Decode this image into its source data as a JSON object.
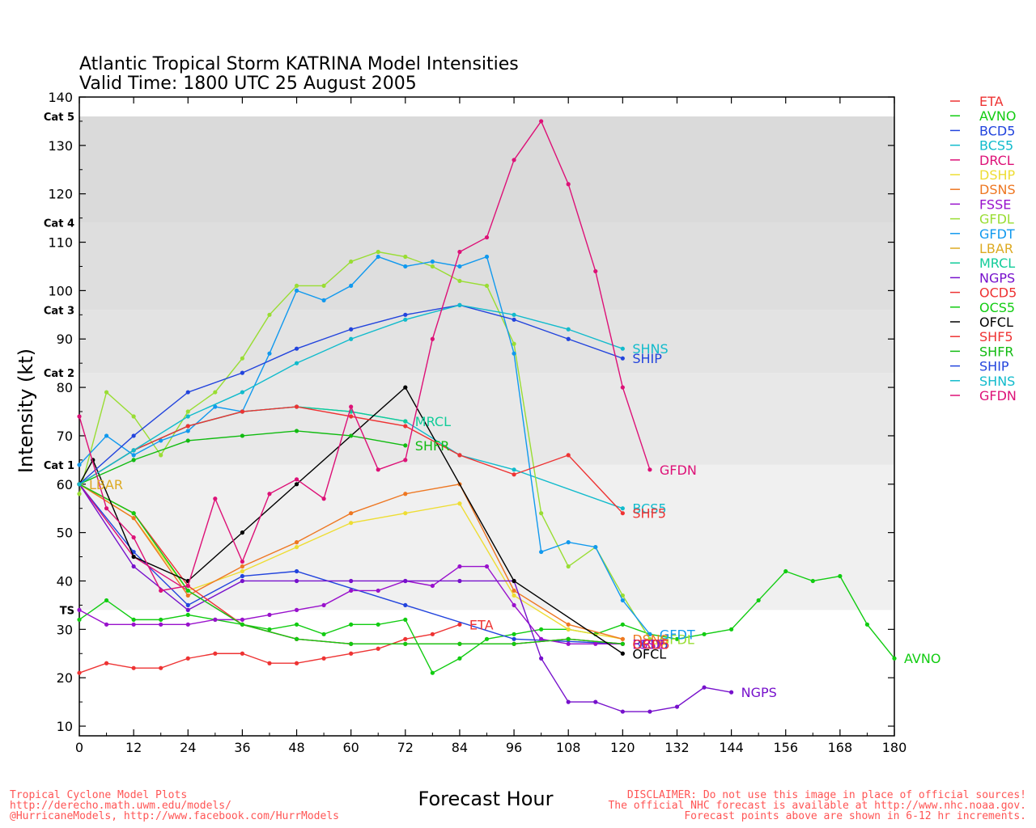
{
  "chart_data": {
    "type": "line",
    "title": "Atlantic Tropical Storm KATRINA Model Intensities",
    "subtitle": "Valid Time: 1800 UTC 25 August 2005",
    "xlabel": "Forecast Hour",
    "ylabel": "Intensity (kt)",
    "xlim": [
      0,
      180
    ],
    "ylim": [
      8,
      140
    ],
    "xticks": [
      0,
      12,
      24,
      36,
      48,
      60,
      72,
      84,
      96,
      108,
      120,
      132,
      144,
      156,
      168,
      180
    ],
    "yticks": [
      10,
      20,
      30,
      40,
      50,
      60,
      70,
      80,
      90,
      100,
      110,
      120,
      130,
      140
    ],
    "categories": [
      {
        "label": "TS",
        "from": 34,
        "to": 64,
        "color": "#f0f0f0",
        "label_y": 34
      },
      {
        "label": "Cat 1",
        "from": 64,
        "to": 83,
        "color": "#e8e8e8",
        "label_y": 64
      },
      {
        "label": "Cat 2",
        "from": 83,
        "to": 96,
        "color": "#e3e3e3",
        "label_y": 83
      },
      {
        "label": "Cat 3",
        "from": 96,
        "to": 114,
        "color": "#dedede",
        "label_y": 96
      },
      {
        "label": "Cat 4",
        "from": 114,
        "to": 136,
        "color": "#dadada",
        "label_y": 114
      },
      {
        "label": "Cat 5",
        "from": 136,
        "to": 140,
        "color": "#ffffff",
        "label_y": 136
      }
    ],
    "legend_position": "right",
    "series": [
      {
        "name": "ETA",
        "color": "#ee3333",
        "label_at_end": true,
        "x": [
          0,
          6,
          12,
          18,
          24,
          30,
          36,
          42,
          48,
          54,
          60,
          66,
          72,
          78,
          84
        ],
        "y": [
          21,
          23,
          22,
          22,
          24,
          25,
          25,
          23,
          23,
          24,
          25,
          26,
          28,
          29,
          31
        ]
      },
      {
        "name": "AVNO",
        "color": "#11cc11",
        "label_at_end": true,
        "x": [
          0,
          6,
          12,
          18,
          24,
          30,
          36,
          42,
          48,
          54,
          60,
          66,
          72,
          78,
          84,
          90,
          96,
          102,
          108,
          114,
          120,
          126,
          132,
          138,
          144,
          150,
          156,
          162,
          168,
          174,
          180
        ],
        "y": [
          32,
          36,
          32,
          32,
          33,
          32,
          31,
          30,
          31,
          29,
          31,
          31,
          32,
          21,
          24,
          28,
          29,
          30,
          30,
          29,
          31,
          29,
          28,
          29,
          30,
          36,
          42,
          40,
          41,
          31,
          24
        ]
      },
      {
        "name": "BCD5",
        "color": "#2244dd",
        "label_at_end": false,
        "x": [
          0,
          12,
          24,
          36,
          48,
          72,
          96,
          120
        ],
        "y": [
          60,
          46,
          35,
          41,
          42,
          35,
          28,
          27
        ]
      },
      {
        "name": "BCS5",
        "color": "#11bbcc",
        "label_at_end": true,
        "x": [
          0,
          12,
          24,
          36,
          48,
          60,
          72,
          84,
          96,
          120
        ],
        "y": [
          60,
          67,
          72,
          75,
          76,
          75,
          73,
          66,
          63,
          55
        ]
      },
      {
        "name": "DRCL",
        "color": "#dd1177",
        "label_at_end": false,
        "x": [
          0,
          12,
          24,
          36,
          48,
          60,
          72,
          84,
          96,
          108,
          120
        ],
        "y": [
          60,
          45,
          38,
          31,
          28,
          27,
          27,
          27,
          27,
          28,
          27
        ]
      },
      {
        "name": "DSHP",
        "color": "#eedd33",
        "label_at_end": false,
        "x": [
          0,
          12,
          24,
          36,
          48,
          60,
          72,
          84,
          96,
          108,
          120
        ],
        "y": [
          60,
          53,
          38,
          42,
          47,
          52,
          54,
          56,
          37,
          30,
          28
        ]
      },
      {
        "name": "DSNS",
        "color": "#ee7722",
        "label_at_end": false,
        "x": [
          0,
          12,
          24,
          36,
          48,
          60,
          72,
          84,
          96,
          108,
          120
        ],
        "y": [
          60,
          53,
          37,
          43,
          48,
          54,
          58,
          60,
          38,
          31,
          28
        ]
      },
      {
        "name": "FSSE",
        "color": "#9911cc",
        "label_at_end": false,
        "x": [
          0,
          6,
          12,
          18,
          24,
          30,
          36,
          42,
          48,
          54,
          60,
          66,
          72,
          78,
          84,
          90,
          96,
          102,
          108,
          114,
          120
        ],
        "y": [
          34,
          31,
          31,
          31,
          31,
          32,
          32,
          33,
          34,
          35,
          38,
          38,
          40,
          39,
          43,
          43,
          35,
          28,
          27,
          27,
          27
        ]
      },
      {
        "name": "GFDL",
        "color": "#99dd33",
        "label_at_end": true,
        "x": [
          0,
          6,
          12,
          18,
          24,
          30,
          36,
          42,
          48,
          54,
          60,
          66,
          72,
          78,
          84,
          90,
          96,
          102,
          108,
          114,
          120,
          126
        ],
        "y": [
          58,
          79,
          74,
          66,
          75,
          79,
          86,
          95,
          101,
          101,
          106,
          108,
          107,
          105,
          102,
          101,
          89,
          54,
          43,
          47,
          37,
          28
        ]
      },
      {
        "name": "GFDT",
        "color": "#1199ee",
        "label_at_end": true,
        "x": [
          0,
          6,
          12,
          18,
          24,
          30,
          36,
          42,
          48,
          54,
          60,
          66,
          72,
          78,
          84,
          90,
          96,
          102,
          108,
          114,
          120,
          126
        ],
        "y": [
          64,
          70,
          66,
          69,
          71,
          76,
          75,
          87,
          100,
          98,
          101,
          107,
          105,
          106,
          105,
          107,
          87,
          46,
          48,
          47,
          36,
          29
        ]
      },
      {
        "name": "LBAR",
        "color": "#ddaa22",
        "label_at_end": true,
        "x": [
          0
        ],
        "y": [
          60
        ]
      },
      {
        "name": "MRCL",
        "color": "#11cc99",
        "label_at_end": true,
        "x": [
          0,
          12,
          24,
          36,
          48,
          60,
          72
        ],
        "y": [
          60,
          67,
          72,
          75,
          76,
          75,
          73
        ]
      },
      {
        "name": "NGPS",
        "color": "#7711cc",
        "label_at_end": true,
        "x": [
          0,
          12,
          24,
          36,
          48,
          60,
          72,
          84,
          96,
          102,
          108,
          114,
          120,
          126,
          132,
          138,
          144
        ],
        "y": [
          60,
          43,
          34,
          40,
          40,
          40,
          40,
          40,
          40,
          24,
          15,
          15,
          13,
          13,
          14,
          18,
          17
        ]
      },
      {
        "name": "OCD5",
        "color": "#ee3333",
        "label_at_end": false,
        "x": [
          0,
          12,
          24,
          36,
          48,
          60,
          72,
          84,
          96,
          108,
          120
        ],
        "y": [
          60,
          54,
          39,
          31,
          28,
          27,
          27,
          27,
          27,
          28,
          27
        ]
      },
      {
        "name": "OCS5",
        "color": "#11cc11",
        "label_at_end": false,
        "x": [
          0,
          12,
          24,
          36,
          48,
          60,
          72,
          84,
          96,
          108,
          120
        ],
        "y": [
          60,
          54,
          38,
          31,
          28,
          27,
          27,
          27,
          27,
          28,
          27
        ]
      },
      {
        "name": "OFCL",
        "color": "#000000",
        "label_at_end": true,
        "x": [
          0,
          3,
          12,
          24,
          36,
          48,
          72,
          96,
          120
        ],
        "y": [
          60,
          65,
          45,
          40,
          50,
          60,
          80,
          40,
          25
        ]
      },
      {
        "name": "SHF5",
        "color": "#ee3333",
        "label_at_end": false,
        "x": [
          0,
          12,
          24,
          36,
          48,
          60,
          72,
          84,
          96,
          108,
          120
        ],
        "y": [
          60,
          67,
          72,
          75,
          76,
          74,
          72,
          66,
          62,
          66,
          54
        ]
      },
      {
        "name": "SHFR",
        "color": "#11bb11",
        "label_at_end": true,
        "x": [
          0,
          12,
          24,
          36,
          48,
          60,
          72
        ],
        "y": [
          60,
          65,
          69,
          70,
          71,
          70,
          68
        ]
      },
      {
        "name": "SHIP",
        "color": "#2244dd",
        "label_at_end": true,
        "x": [
          0,
          12,
          24,
          36,
          48,
          60,
          72,
          84,
          96,
          108,
          120
        ],
        "y": [
          60,
          70,
          79,
          83,
          88,
          92,
          95,
          97,
          94,
          90,
          86
        ]
      },
      {
        "name": "SHNS",
        "color": "#11bbcc",
        "label_at_end": true,
        "x": [
          0,
          12,
          24,
          36,
          48,
          60,
          72,
          84,
          96,
          108,
          120
        ],
        "y": [
          60,
          67,
          74,
          79,
          85,
          90,
          94,
          97,
          95,
          92,
          88
        ]
      },
      {
        "name": "GFDN",
        "color": "#dd1177",
        "label_at_end": true,
        "x": [
          0,
          6,
          12,
          18,
          24,
          30,
          36,
          42,
          48,
          54,
          60,
          66,
          72,
          78,
          84,
          90,
          96,
          102,
          108,
          114,
          120,
          126
        ],
        "y": [
          74,
          55,
          49,
          38,
          39,
          57,
          44,
          58,
          61,
          57,
          76,
          63,
          65,
          90,
          108,
          111,
          127,
          135,
          122,
          104,
          80,
          63
        ]
      }
    ],
    "extra_labels": [
      {
        "text": "DSNS",
        "x": 120,
        "y": 28,
        "color": "#ee7722"
      },
      {
        "text": "DSHP",
        "x": 120,
        "y": 27,
        "color": "#eedd33"
      },
      {
        "text": "BCD5",
        "x": 120,
        "y": 27,
        "color": "#2244dd"
      },
      {
        "text": "DRCL",
        "x": 120,
        "y": 27,
        "color": "#dd1177"
      },
      {
        "text": "FSSE",
        "x": 120,
        "y": 27,
        "color": "#9911cc"
      },
      {
        "text": "OCD5",
        "x": 120,
        "y": 27,
        "color": "#ee3333"
      },
      {
        "text": "SHF5",
        "x": 120,
        "y": 54,
        "color": "#ee3333"
      }
    ]
  },
  "footer": {
    "left": [
      "Tropical Cyclone Model Plots",
      "http://derecho.math.uwm.edu/models/",
      "@HurricaneModels, http://www.facebook.com/HurrModels"
    ],
    "right": [
      "DISCLAIMER: Do not use this image in place of official sources!",
      "The official NHC forecast is available at http://www.nhc.noaa.gov.",
      "Forecast points above are shown in 6-12 hr increments."
    ]
  }
}
